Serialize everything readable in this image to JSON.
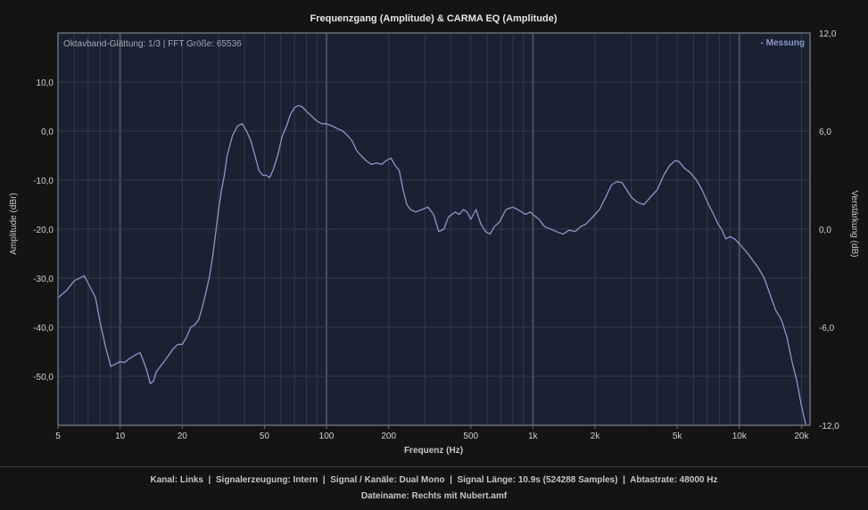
{
  "chart_data": {
    "type": "line",
    "title": "Frequenzgang (Amplitude) & CARMA EQ (Amplitude)",
    "annotation": "Oktavband-Glättung: 1/3 | FFT Größe: 65536",
    "xlabel": "Frequenz (Hz)",
    "ylabel": "Amplitude (dBr)",
    "y2label": "Verstärkung (dB)",
    "xscale": "log",
    "xlim": [
      5,
      22000
    ],
    "ylim": [
      -60,
      20
    ],
    "y2lim": [
      -12,
      12
    ],
    "grid": true,
    "legend_position": "top-right",
    "x_ticks": [
      {
        "value": 5,
        "label": "5"
      },
      {
        "value": 10,
        "label": "10"
      },
      {
        "value": 20,
        "label": "20"
      },
      {
        "value": 50,
        "label": "50"
      },
      {
        "value": 100,
        "label": "100"
      },
      {
        "value": 200,
        "label": "200"
      },
      {
        "value": 500,
        "label": "500"
      },
      {
        "value": 1000,
        "label": "1k"
      },
      {
        "value": 2000,
        "label": "2k"
      },
      {
        "value": 5000,
        "label": "5k"
      },
      {
        "value": 10000,
        "label": "10k"
      },
      {
        "value": 20000,
        "label": "20k"
      }
    ],
    "y_ticks": [
      {
        "value": 10,
        "label": "10,0"
      },
      {
        "value": 0,
        "label": "0,0"
      },
      {
        "value": -10,
        "label": "-10,0"
      },
      {
        "value": -20,
        "label": "-20,0"
      },
      {
        "value": -30,
        "label": "-30,0"
      },
      {
        "value": -40,
        "label": "-40,0"
      },
      {
        "value": -50,
        "label": "-50,0"
      }
    ],
    "y2_ticks": [
      {
        "value": 12,
        "label": "12,0"
      },
      {
        "value": 6,
        "label": "6,0"
      },
      {
        "value": 0,
        "label": "0,0"
      },
      {
        "value": -6,
        "label": "-6,0"
      },
      {
        "value": -12,
        "label": "-12,0"
      }
    ],
    "series": [
      {
        "name": "Messung",
        "legend_label": "- Messung",
        "color": "#8f95c9",
        "points": [
          [
            5,
            -34
          ],
          [
            5.5,
            -32.5
          ],
          [
            6,
            -30.5
          ],
          [
            6.7,
            -29.5
          ],
          [
            7.2,
            -32
          ],
          [
            7.6,
            -34
          ],
          [
            8,
            -39
          ],
          [
            8.5,
            -44
          ],
          [
            9,
            -48
          ],
          [
            9.5,
            -47.5
          ],
          [
            10,
            -47
          ],
          [
            10.5,
            -47.2
          ],
          [
            11,
            -46.5
          ],
          [
            11.5,
            -46
          ],
          [
            12,
            -45.5
          ],
          [
            12.5,
            -45.2
          ],
          [
            13,
            -47
          ],
          [
            13.5,
            -49
          ],
          [
            14,
            -51.5
          ],
          [
            14.5,
            -51
          ],
          [
            15,
            -49
          ],
          [
            16,
            -47.5
          ],
          [
            17,
            -46
          ],
          [
            18,
            -44.5
          ],
          [
            19,
            -43.5
          ],
          [
            20,
            -43.5
          ],
          [
            21,
            -42
          ],
          [
            22,
            -40
          ],
          [
            23,
            -39.5
          ],
          [
            24,
            -38.5
          ],
          [
            25,
            -36
          ],
          [
            26,
            -33
          ],
          [
            27,
            -30
          ],
          [
            28,
            -26
          ],
          [
            29,
            -21
          ],
          [
            30,
            -16
          ],
          [
            31,
            -12
          ],
          [
            32,
            -9
          ],
          [
            33,
            -5
          ],
          [
            35,
            -1
          ],
          [
            37,
            1
          ],
          [
            39,
            1.5
          ],
          [
            41,
            0
          ],
          [
            43,
            -2
          ],
          [
            45,
            -5
          ],
          [
            47,
            -8
          ],
          [
            49,
            -9
          ],
          [
            51,
            -9
          ],
          [
            53,
            -9.5
          ],
          [
            55,
            -8
          ],
          [
            58,
            -5
          ],
          [
            61,
            -1
          ],
          [
            64,
            1
          ],
          [
            67,
            3.5
          ],
          [
            70,
            4.8
          ],
          [
            73,
            5.2
          ],
          [
            76,
            5
          ],
          [
            80,
            4
          ],
          [
            85,
            3
          ],
          [
            90,
            2
          ],
          [
            95,
            1.5
          ],
          [
            100,
            1.5
          ],
          [
            107,
            1
          ],
          [
            113,
            0.5
          ],
          [
            120,
            0
          ],
          [
            127,
            -1
          ],
          [
            133,
            -2
          ],
          [
            140,
            -4
          ],
          [
            147,
            -5
          ],
          [
            155,
            -6
          ],
          [
            165,
            -6.8
          ],
          [
            175,
            -6.5
          ],
          [
            185,
            -6.8
          ],
          [
            195,
            -6
          ],
          [
            205,
            -5.5
          ],
          [
            215,
            -7
          ],
          [
            225,
            -8
          ],
          [
            235,
            -12
          ],
          [
            245,
            -15
          ],
          [
            255,
            -16
          ],
          [
            270,
            -16.5
          ],
          [
            290,
            -16
          ],
          [
            310,
            -15.5
          ],
          [
            330,
            -17
          ],
          [
            350,
            -20.5
          ],
          [
            370,
            -20
          ],
          [
            390,
            -17.5
          ],
          [
            420,
            -16.5
          ],
          [
            440,
            -17
          ],
          [
            460,
            -16
          ],
          [
            480,
            -16.5
          ],
          [
            500,
            -18
          ],
          [
            530,
            -16
          ],
          [
            560,
            -19
          ],
          [
            590,
            -20.5
          ],
          [
            620,
            -21
          ],
          [
            650,
            -19.5
          ],
          [
            690,
            -18.5
          ],
          [
            740,
            -16
          ],
          [
            800,
            -15.5
          ],
          [
            860,
            -16.2
          ],
          [
            920,
            -17
          ],
          [
            970,
            -16.5
          ],
          [
            1000,
            -17
          ],
          [
            1070,
            -18
          ],
          [
            1140,
            -19.5
          ],
          [
            1220,
            -20
          ],
          [
            1300,
            -20.5
          ],
          [
            1400,
            -21
          ],
          [
            1500,
            -20.2
          ],
          [
            1600,
            -20.5
          ],
          [
            1700,
            -19.5
          ],
          [
            1800,
            -19
          ],
          [
            1900,
            -18
          ],
          [
            2000,
            -17
          ],
          [
            2100,
            -16
          ],
          [
            2250,
            -13.5
          ],
          [
            2400,
            -11
          ],
          [
            2550,
            -10.3
          ],
          [
            2700,
            -10.5
          ],
          [
            2850,
            -12
          ],
          [
            3000,
            -13.5
          ],
          [
            3200,
            -14.5
          ],
          [
            3450,
            -15
          ],
          [
            3700,
            -13.5
          ],
          [
            4000,
            -12
          ],
          [
            4300,
            -9
          ],
          [
            4600,
            -7
          ],
          [
            4900,
            -6
          ],
          [
            5100,
            -6.2
          ],
          [
            5400,
            -7.5
          ],
          [
            5800,
            -8.5
          ],
          [
            6200,
            -10
          ],
          [
            6600,
            -12
          ],
          [
            7100,
            -15
          ],
          [
            7500,
            -17
          ],
          [
            7900,
            -19
          ],
          [
            8200,
            -20
          ],
          [
            8600,
            -22
          ],
          [
            9000,
            -21.5
          ],
          [
            9500,
            -22
          ],
          [
            10000,
            -23
          ],
          [
            10500,
            -24
          ],
          [
            11000,
            -25
          ],
          [
            11700,
            -26.5
          ],
          [
            12400,
            -28
          ],
          [
            13200,
            -30
          ],
          [
            14000,
            -33
          ],
          [
            15000,
            -36.5
          ],
          [
            16000,
            -38.5
          ],
          [
            17000,
            -42
          ],
          [
            18000,
            -47
          ],
          [
            19000,
            -51
          ],
          [
            20000,
            -56
          ],
          [
            21000,
            -60
          ]
        ]
      }
    ]
  },
  "footer": {
    "line1": "Kanal: Links  |  Signalerzeugung: Intern  |  Signal / Kanäle: Dual Mono  |  Signal Länge: 10.9s (524288 Samples)  |  Abtastrate: 48000 Hz",
    "line2": "Dateiname: Rechts mit Nubert.amf"
  }
}
